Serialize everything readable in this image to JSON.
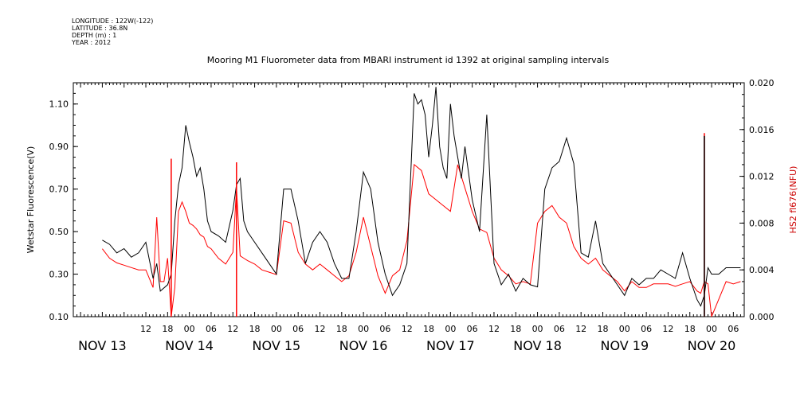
{
  "metadata_lines": [
    "LONGITUDE : 122W(-122)",
    "LATITUDE : 36.8N",
    "DEPTH (m) : 1",
    "YEAR : 2012"
  ],
  "chart_data": {
    "type": "line",
    "title": "Mooring M1 Fluorometer data from MBARI instrument id 1392 at original sampling intervals",
    "xlabel": "",
    "ylabel_left": "Wetstar Fluorescence(V)",
    "ylabel_right": "HS2 fl676(NFU)",
    "x_range_days": [
      0,
      7.1
    ],
    "ylim_left": [
      0.1,
      1.2
    ],
    "ylim_right": [
      0.0,
      0.02
    ],
    "left_ticks": [
      "0.10",
      "0.30",
      "0.50",
      "0.70",
      "0.90",
      "1.10"
    ],
    "left_tick_values": [
      0.1,
      0.3,
      0.5,
      0.7,
      0.9,
      1.1
    ],
    "right_ticks": [
      "0.000",
      "0.004",
      "0.008",
      "0.012",
      "0.016",
      "0.020"
    ],
    "right_tick_values": [
      0.0,
      0.004,
      0.008,
      0.012,
      0.016,
      0.02
    ],
    "hour_ticks": [
      "12",
      "18",
      "00",
      "06",
      "12",
      "18",
      "00",
      "06",
      "12",
      "18",
      "00",
      "06",
      "12",
      "18",
      "00",
      "06",
      "12",
      "18",
      "00",
      "06",
      "12",
      "18",
      "00",
      "06",
      "12",
      "18",
      "00",
      "06"
    ],
    "hour_tick_hours": [
      12,
      18,
      24,
      30,
      36,
      42,
      48,
      54,
      60,
      66,
      72,
      78,
      84,
      90,
      96,
      102,
      108,
      114,
      120,
      126,
      132,
      138,
      144,
      150,
      156,
      162,
      168,
      174
    ],
    "day_labels": [
      "NOV 13",
      "NOV 14",
      "NOV 15",
      "NOV 16",
      "NOV 17",
      "NOV 18",
      "NOV 19",
      "NOV 20"
    ],
    "day_label_hours": [
      0,
      24,
      48,
      72,
      96,
      120,
      144,
      168
    ],
    "x_origin_hour": 0,
    "series": [
      {
        "name": "Wetstar Fluorescence(V)",
        "axis": "left",
        "color": "#000000",
        "x_hours": [
          0,
          2,
          4,
          6,
          8,
          10,
          12,
          14,
          15,
          16,
          18,
          19,
          20,
          21,
          22,
          23,
          24,
          25,
          26,
          27,
          28,
          29,
          30,
          32,
          34,
          36,
          37,
          38,
          39,
          40,
          42,
          44,
          46,
          48,
          50,
          52,
          54,
          56,
          58,
          60,
          62,
          64,
          66,
          68,
          70,
          72,
          74,
          76,
          78,
          80,
          82,
          84,
          86,
          87,
          88,
          89,
          90,
          91,
          92,
          93,
          94,
          95,
          96,
          97,
          98,
          99,
          100,
          102,
          104,
          106,
          108,
          110,
          112,
          114,
          116,
          118,
          120,
          122,
          124,
          126,
          128,
          130,
          132,
          134,
          136,
          138,
          140,
          142,
          144,
          146,
          148,
          150,
          152,
          154,
          156,
          158,
          160,
          162,
          164,
          165,
          166,
          167,
          168,
          170,
          172,
          174,
          176
        ],
        "y": [
          0.46,
          0.44,
          0.4,
          0.42,
          0.38,
          0.4,
          0.45,
          0.28,
          0.35,
          0.22,
          0.25,
          0.3,
          0.55,
          0.72,
          0.8,
          1.0,
          0.92,
          0.85,
          0.76,
          0.8,
          0.7,
          0.55,
          0.5,
          0.48,
          0.45,
          0.6,
          0.72,
          0.75,
          0.55,
          0.5,
          0.45,
          0.4,
          0.35,
          0.3,
          0.7,
          0.7,
          0.55,
          0.35,
          0.45,
          0.5,
          0.45,
          0.35,
          0.28,
          0.28,
          0.5,
          0.78,
          0.7,
          0.45,
          0.3,
          0.2,
          0.25,
          0.35,
          1.15,
          1.1,
          1.12,
          1.05,
          0.85,
          1.0,
          1.18,
          0.9,
          0.8,
          0.75,
          1.1,
          0.95,
          0.85,
          0.75,
          0.9,
          0.65,
          0.5,
          1.05,
          0.35,
          0.25,
          0.3,
          0.22,
          0.28,
          0.25,
          0.24,
          0.7,
          0.8,
          0.83,
          0.94,
          0.82,
          0.4,
          0.38,
          0.55,
          0.35,
          0.3,
          0.25,
          0.2,
          0.28,
          0.25,
          0.28,
          0.28,
          0.32,
          0.3,
          0.28,
          0.4,
          0.28,
          0.18,
          0.15,
          0.2,
          0.33,
          0.3,
          0.3,
          0.33,
          0.33,
          0.33
        ],
        "x_hours_count_note": ""
      },
      {
        "name": "HS2 fl676(NFU)",
        "axis": "right",
        "color": "#ff0000",
        "x_hours": [
          0,
          2,
          4,
          6,
          8,
          10,
          12,
          14,
          15,
          16,
          17,
          18,
          19,
          20,
          21,
          22,
          23,
          24,
          25,
          26,
          27,
          28,
          29,
          30,
          32,
          34,
          36,
          37,
          38,
          39,
          40,
          42,
          44,
          46,
          48,
          50,
          52,
          54,
          56,
          58,
          60,
          62,
          64,
          66,
          68,
          70,
          72,
          74,
          76,
          78,
          80,
          82,
          84,
          86,
          88,
          90,
          92,
          94,
          96,
          98,
          100,
          102,
          104,
          106,
          108,
          110,
          112,
          114,
          116,
          118,
          120,
          122,
          124,
          126,
          128,
          130,
          132,
          134,
          136,
          138,
          140,
          142,
          144,
          146,
          148,
          150,
          152,
          154,
          156,
          158,
          160,
          162,
          164,
          165,
          166,
          167,
          168,
          170,
          172,
          174,
          176
        ],
        "y": [
          0.0058,
          0.005,
          0.0046,
          0.0044,
          0.0042,
          0.004,
          0.004,
          0.0025,
          0.0085,
          0.003,
          0.003,
          0.005,
          0.0,
          0.0025,
          0.009,
          0.0098,
          0.009,
          0.008,
          0.0078,
          0.0075,
          0.007,
          0.0068,
          0.006,
          0.0058,
          0.005,
          0.0045,
          0.0055,
          0.011,
          0.0052,
          0.005,
          0.0048,
          0.0045,
          0.004,
          0.0038,
          0.0036,
          0.0082,
          0.008,
          0.0055,
          0.0045,
          0.004,
          0.0045,
          0.004,
          0.0035,
          0.003,
          0.0035,
          0.0055,
          0.0085,
          0.006,
          0.0035,
          0.002,
          0.0035,
          0.004,
          0.0065,
          0.013,
          0.0125,
          0.0105,
          0.01,
          0.0095,
          0.009,
          0.013,
          0.011,
          0.009,
          0.0075,
          0.0072,
          0.005,
          0.004,
          0.0035,
          0.0028,
          0.003,
          0.0028,
          0.008,
          0.009,
          0.0095,
          0.0085,
          0.008,
          0.006,
          0.005,
          0.0045,
          0.005,
          0.004,
          0.0035,
          0.003,
          0.0022,
          0.003,
          0.0025,
          0.0025,
          0.0028,
          0.0028,
          0.0028,
          0.0026,
          0.0028,
          0.003,
          0.0022,
          0.002,
          0.003,
          0.0028,
          0.0,
          0.0015,
          0.003,
          0.0028,
          0.003
        ]
      }
    ],
    "spikes": [
      {
        "series": 1,
        "x_hour": 19,
        "y": 0.0135
      },
      {
        "series": 1,
        "x_hour": 37,
        "y": 0.0132
      },
      {
        "series": 1,
        "x_hour": 166,
        "y": 0.0157
      },
      {
        "series": 0,
        "x_hour": 166,
        "y": 0.95
      }
    ],
    "grid": false,
    "legend": "none"
  }
}
